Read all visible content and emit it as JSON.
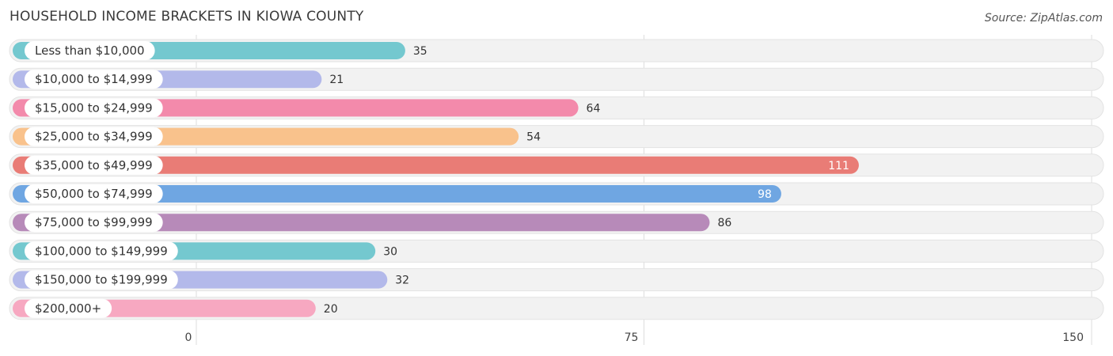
{
  "header": {
    "title": "HOUSEHOLD INCOME BRACKETS IN KIOWA COUNTY",
    "source": "Source: ZipAtlas.com"
  },
  "chart_data": {
    "type": "bar",
    "orientation": "horizontal",
    "title": "HOUSEHOLD INCOME BRACKETS IN KIOWA COUNTY",
    "xlabel": "",
    "ylabel": "",
    "categories": [
      "Less than $10,000",
      "$10,000 to $14,999",
      "$15,000 to $24,999",
      "$25,000 to $34,999",
      "$35,000 to $49,999",
      "$50,000 to $74,999",
      "$75,000 to $99,999",
      "$100,000 to $149,999",
      "$150,000 to $199,999",
      "$200,000+"
    ],
    "values": [
      35,
      21,
      64,
      54,
      111,
      98,
      86,
      30,
      32,
      20
    ],
    "colors": [
      "#74c8cf",
      "#b3b9ea",
      "#f38aab",
      "#f9c28c",
      "#e97c76",
      "#6fa6e2",
      "#b78ab9",
      "#74c8cf",
      "#b3b9ea",
      "#f7a8c1"
    ],
    "xlim": [
      0,
      150
    ],
    "xticks": [
      0,
      75,
      150
    ],
    "grid": true,
    "legend": "none"
  }
}
